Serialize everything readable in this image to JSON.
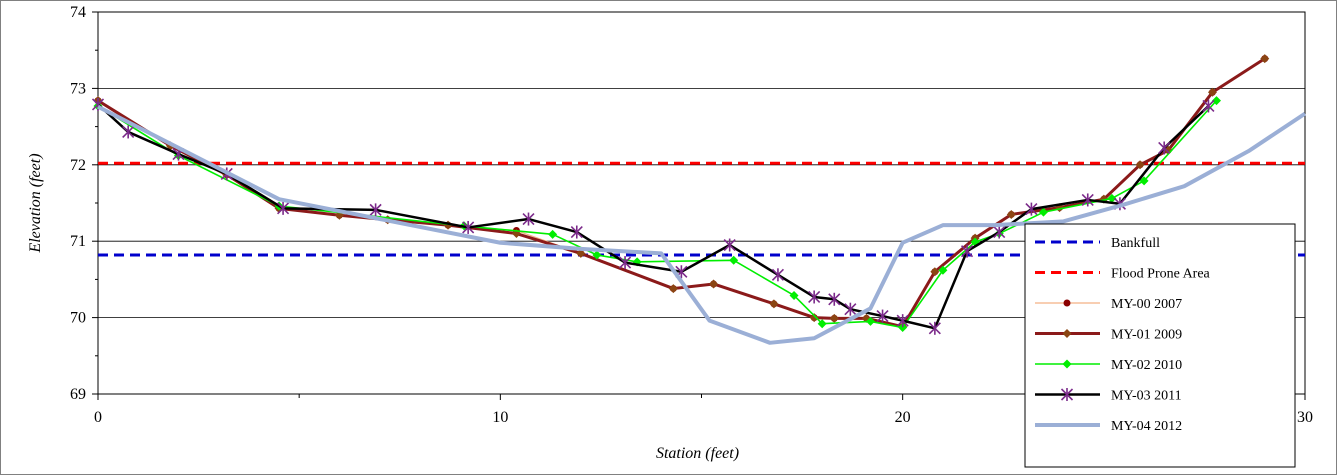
{
  "chart_data": {
    "type": "line",
    "title": "",
    "xlabel": "Station (feet)",
    "ylabel": "Elevation (feet)",
    "xlim": [
      0,
      30
    ],
    "ylim": [
      69,
      74
    ],
    "x_ticks": [
      0,
      10,
      20,
      30
    ],
    "y_ticks": [
      69,
      70,
      71,
      72,
      73,
      74
    ],
    "grid": "horizontal",
    "legend_position": "bottom-right",
    "reference_lines": [
      {
        "name": "Bankfull",
        "y": 70.82,
        "color": "#0000cc",
        "dash": true
      },
      {
        "name": "Flood Prone Area",
        "y": 72.02,
        "color": "#ff0000",
        "dash": true
      }
    ],
    "series": [
      {
        "name": "MY-00 2007",
        "color": "#8b0000",
        "line_color": "#f4b183",
        "marker": "dot",
        "x": [
          0,
          1.8,
          3.2,
          4.5,
          6.0,
          7.2,
          8.7,
          10.4,
          12.0,
          14.3,
          15.3,
          16.8,
          17.8,
          18.3,
          19.1,
          20.0,
          20.8,
          21.8,
          22.7,
          23.9,
          25.0,
          25.9,
          26.6,
          27.7,
          29.0
        ],
        "y": [
          72.84,
          72.25,
          71.87,
          71.43,
          71.34,
          71.28,
          71.21,
          71.14,
          70.84,
          70.38,
          70.44,
          70.18,
          70.0,
          69.99,
          69.99,
          69.88,
          70.6,
          71.04,
          71.35,
          71.44,
          71.55,
          72.0,
          72.19,
          72.95,
          73.39
        ]
      },
      {
        "name": "MY-01 2009",
        "color": "#8b4513",
        "line_color": "#8b1a1a",
        "marker": "diamond",
        "x": [
          0,
          1.8,
          3.2,
          4.5,
          6.0,
          7.2,
          8.7,
          10.4,
          12.0,
          14.3,
          15.3,
          16.8,
          17.8,
          18.3,
          19.1,
          20.0,
          20.8,
          21.8,
          22.7,
          23.9,
          25.0,
          25.9,
          26.6,
          27.7,
          29.0
        ],
        "y": [
          72.84,
          72.25,
          71.87,
          71.43,
          71.34,
          71.28,
          71.21,
          71.1,
          70.84,
          70.38,
          70.44,
          70.18,
          70.0,
          69.99,
          69.99,
          69.88,
          70.6,
          71.04,
          71.35,
          71.44,
          71.55,
          72.0,
          72.19,
          72.95,
          73.39
        ]
      },
      {
        "name": "MY-02 2010",
        "color": "#00ee00",
        "line_color": "#00ee00",
        "marker": "diamond",
        "x": [
          0,
          2.0,
          4.5,
          9.1,
          11.3,
          12.4,
          13.4,
          15.8,
          17.3,
          18.0,
          19.2,
          20.0,
          21.0,
          21.8,
          22.4,
          23.5,
          25.2,
          26.0,
          27.8
        ],
        "y": [
          72.77,
          72.12,
          71.46,
          71.2,
          71.09,
          70.82,
          70.73,
          70.75,
          70.29,
          69.92,
          69.95,
          69.87,
          70.62,
          70.99,
          71.1,
          71.38,
          71.56,
          71.79,
          72.84
        ]
      },
      {
        "name": "MY-03 2011",
        "color": "#7b2a8a",
        "line_color": "#000000",
        "marker": "star",
        "x": [
          0,
          0.75,
          2.0,
          3.2,
          4.6,
          6.9,
          9.2,
          10.7,
          11.9,
          13.1,
          14.5,
          15.7,
          16.9,
          17.8,
          18.3,
          18.7,
          19.5,
          20.0,
          20.8,
          21.6,
          22.4,
          23.2,
          24.6,
          25.4,
          26.5,
          27.6
        ],
        "y": [
          72.79,
          72.43,
          72.14,
          71.88,
          71.43,
          71.41,
          71.18,
          71.29,
          71.12,
          70.72,
          70.6,
          70.95,
          70.56,
          70.27,
          70.24,
          70.11,
          70.02,
          69.96,
          69.86,
          70.87,
          71.12,
          71.42,
          71.54,
          71.49,
          72.22,
          72.77
        ]
      },
      {
        "name": "MY-04 2012",
        "color": "#9bafd6",
        "line_color": "#9bafd6",
        "marker": "none",
        "x": [
          0,
          4.5,
          10.0,
          12.0,
          14.0,
          15.2,
          16.7,
          17.8,
          19.2,
          20.0,
          21.0,
          22.3,
          24.0,
          25.5,
          27.0,
          28.6,
          30.0
        ],
        "y": [
          72.76,
          71.55,
          70.98,
          70.9,
          70.84,
          69.96,
          69.67,
          69.73,
          70.12,
          70.98,
          71.21,
          71.21,
          71.26,
          71.48,
          71.72,
          72.18,
          72.67
        ]
      }
    ]
  }
}
